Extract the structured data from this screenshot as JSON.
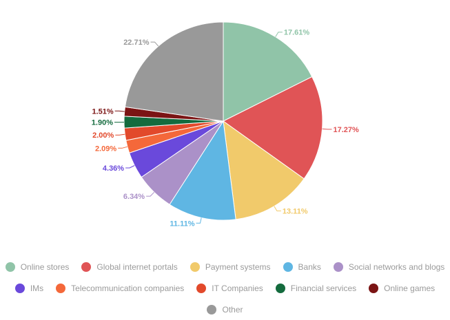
{
  "chart_data": {
    "type": "pie",
    "categories": [
      "Online stores",
      "Global internet portals",
      "Payment systems",
      "Banks",
      "Social networks and blogs",
      "IMs",
      "Telecommunication companies",
      "IT Companies",
      "Financial services",
      "Online games",
      "Other"
    ],
    "values": [
      17.61,
      17.27,
      13.11,
      11.11,
      6.34,
      4.36,
      2.09,
      2.0,
      1.9,
      1.51,
      22.71
    ],
    "data_labels": [
      "17.61%",
      "17.27%",
      "13.11%",
      "11.11%",
      "6.34%",
      "4.36%",
      "2.09%",
      "2.00%",
      "1.90%",
      "1.51%",
      "22.71%"
    ],
    "colors": [
      "#90c4a8",
      "#e05456",
      "#f1ca6b",
      "#5fb6e3",
      "#ab91c8",
      "#6a49db",
      "#f4683a",
      "#e2492b",
      "#146b3e",
      "#7b1414",
      "#999999"
    ],
    "label_colors": [
      "#90c4a8",
      "#e05456",
      "#f1ca6b",
      "#5fb6e3",
      "#ab91c8",
      "#6a49db",
      "#f4683a",
      "#e2492b",
      "#146b3e",
      "#7b1414",
      "#999999"
    ],
    "legend_rows": [
      [
        0,
        1,
        2,
        3,
        4
      ],
      [
        5,
        6,
        7,
        8,
        9
      ],
      [
        10
      ]
    ],
    "legend_position": "bottom",
    "start_angle": "top",
    "direction": "clockwise"
  }
}
